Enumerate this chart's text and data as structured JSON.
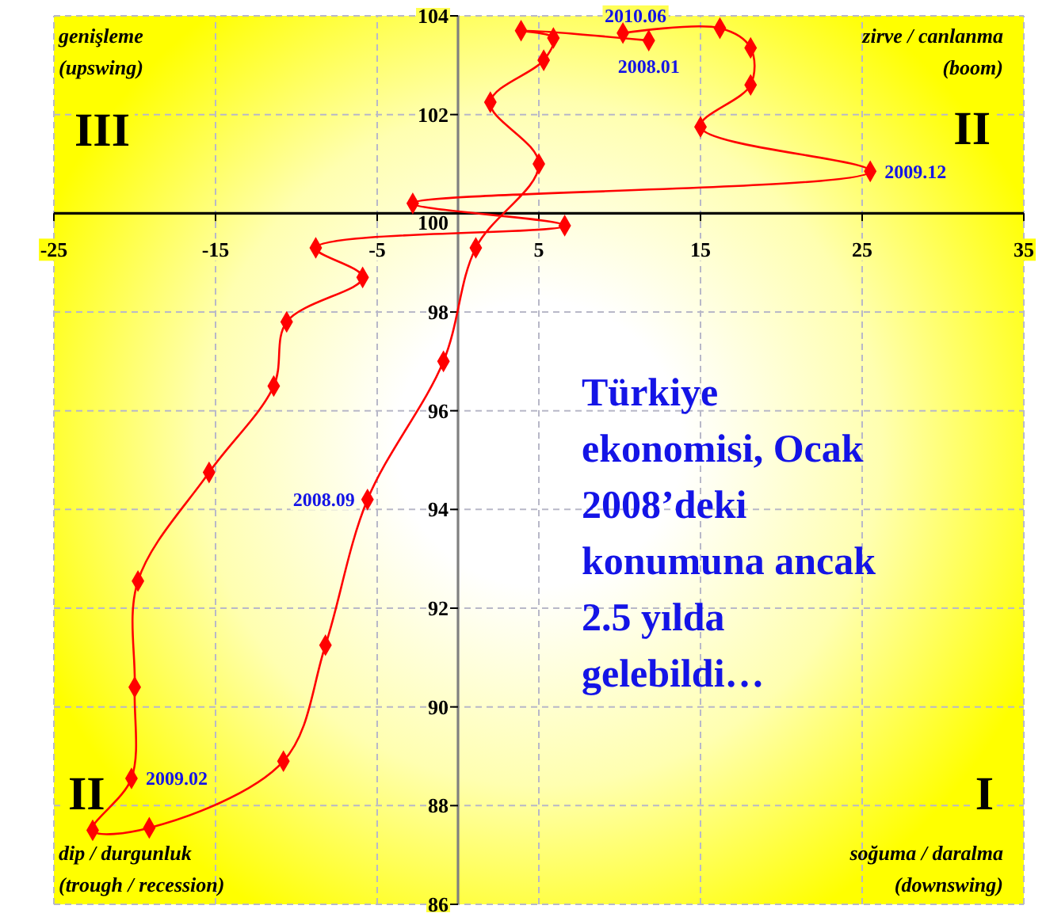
{
  "chart_data": {
    "type": "line",
    "series": [
      {
        "color": "#ff0000",
        "x": [
          11.8,
          3.9,
          5.9,
          5.3,
          2.0,
          5.0,
          1.1,
          -0.9,
          -5.6,
          -8.2,
          -10.8,
          -19.1,
          -22.6,
          -20.2,
          -20.0,
          -19.8,
          -15.4,
          -11.4,
          -10.6,
          -5.9,
          -8.8,
          6.6,
          -2.8,
          25.5,
          15.0,
          18.1,
          18.1,
          16.2,
          10.2
        ],
        "values": [
          103.5,
          103.7,
          103.55,
          103.1,
          102.25,
          101.0,
          99.3,
          97.0,
          94.2,
          91.25,
          88.9,
          87.55,
          87.5,
          88.55,
          90.4,
          92.55,
          94.75,
          96.5,
          97.8,
          98.7,
          99.3,
          99.75,
          100.2,
          100.85,
          101.75,
          102.6,
          103.35,
          103.75,
          103.65
        ]
      }
    ],
    "xlim": [
      -25,
      35
    ],
    "ylim": [
      86,
      104
    ],
    "xticks": [
      -25,
      -15,
      -5,
      5,
      15,
      25,
      35
    ],
    "yticks": [
      86,
      88,
      90,
      92,
      94,
      96,
      98,
      100,
      102,
      104
    ],
    "grid": true,
    "marker": "diamond",
    "line_style": "solid",
    "annotations": [
      {
        "text": "2008.01",
        "x": 11.8,
        "y": 103.5
      },
      {
        "text": "2008.09",
        "x": -5.6,
        "y": 94.2
      },
      {
        "text": "2009.02",
        "x": -20.2,
        "y": 88.55
      },
      {
        "text": "2009.12",
        "x": 25.5,
        "y": 100.85
      },
      {
        "text": "2010.06",
        "x": 10.2,
        "y": 103.65
      },
      "genişleme\n(upswing)",
      "III",
      "zirve / canlanma\n(boom)",
      "II",
      "II",
      "dip / durgunluk\n(trough / recession)",
      "I",
      "soğuma / daralma\n(downswing)",
      "Türkiye\nekonomisi, Ocak\n2008’deki\nkonumuna ancak\n2.5 yılda\ngelebildi…"
    ]
  }
}
